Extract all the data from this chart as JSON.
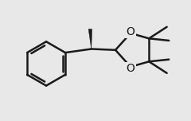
{
  "bg_color": "#e8e8e8",
  "line_color": "#1a1a1a",
  "line_width": 1.8,
  "label_O": "O",
  "label_O_fontsize": 10,
  "fig_width": 2.4,
  "fig_height": 1.52,
  "dpi": 100,
  "xlim": [
    -4.0,
    5.0
  ],
  "ylim": [
    -2.8,
    2.8
  ]
}
